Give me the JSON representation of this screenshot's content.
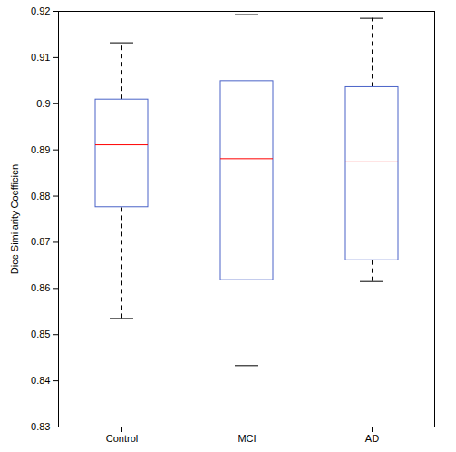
{
  "chart_data": {
    "type": "box",
    "y_label": "Dice Similarity Coefficien",
    "categories": [
      "Control",
      "MCI",
      "AD"
    ],
    "whisker_low": [
      0.8535,
      0.8433,
      0.8615
    ],
    "q1": [
      0.8776,
      0.8618,
      0.8661
    ],
    "median": [
      0.8911,
      0.8881,
      0.8874
    ],
    "q3": [
      0.9009,
      0.9049,
      0.9036
    ],
    "whisker_high": [
      0.9132,
      0.9193,
      0.9185
    ],
    "color": "#4a63c8",
    "ylim": [
      0.83,
      0.92
    ],
    "yticks": [
      0.83,
      0.84,
      0.85,
      0.86,
      0.87,
      0.88,
      0.89,
      0.9,
      0.91,
      0.92
    ],
    "grid": false
  }
}
